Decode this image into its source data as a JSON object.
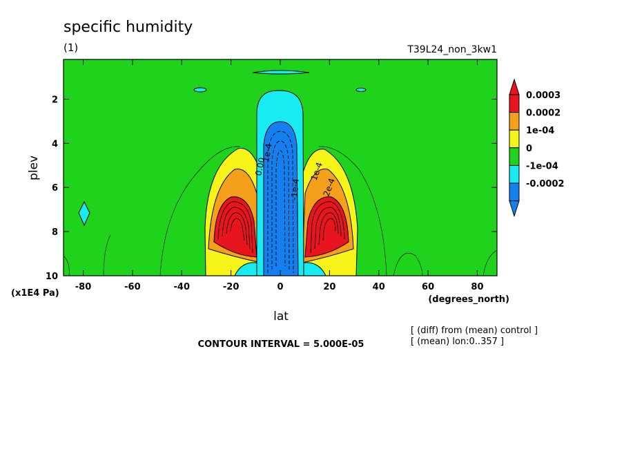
{
  "chart_data": {
    "type": "heatmap",
    "title": "specific humidity",
    "panel_label": "(1)",
    "run_label": "T39L24_non_3kw1",
    "xlabel": "lat",
    "x_units": "(degrees_north)",
    "ylabel": "plev",
    "y_units": "(x1E4 Pa)",
    "xlim": [
      -88,
      88
    ],
    "ylim": [
      10,
      0.2
    ],
    "x_ticks": [
      -80,
      -60,
      -40,
      -20,
      0,
      20,
      40,
      60,
      80
    ],
    "y_ticks": [
      2,
      4,
      6,
      8,
      10
    ],
    "colorbar": {
      "levels": [
        "0.0003",
        "0.0002",
        "1e-04",
        "0",
        "-1e-04",
        "-0.0002"
      ],
      "colors": [
        "#e8141e",
        "#f4a01a",
        "#f7f41a",
        "#1fd21c",
        "#18ecf2",
        "#1480f0"
      ],
      "over_color": "#e8141e",
      "under_color": "#1480f0"
    },
    "contour_labels": [
      "0.00",
      "1e-4",
      "-1e-4",
      "1e-4",
      "2e-4"
    ],
    "contour_interval_text": "CONTOUR INTERVAL = 5.000E-05",
    "notes": [
      "[ (diff) from (mean) control ]",
      "[ (mean) lon:0..357 ]"
    ],
    "features": [
      {
        "kind": "max",
        "lat": -17,
        "plev": 8.2,
        "value": 0.00035
      },
      {
        "kind": "max",
        "lat": 20,
        "plev": 8.2,
        "value": 0.00035
      },
      {
        "kind": "min",
        "lat": 2,
        "plev": 6.0,
        "value": -0.0004
      }
    ]
  }
}
